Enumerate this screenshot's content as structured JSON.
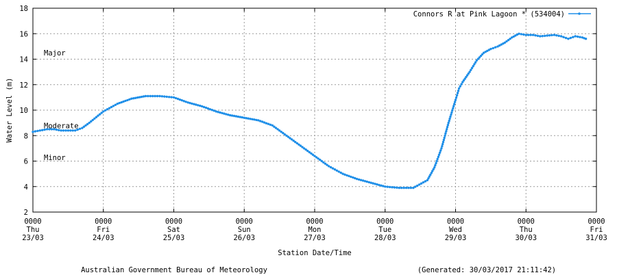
{
  "chart_data": {
    "type": "line",
    "title": "",
    "xlabel": "Station Date/Time",
    "ylabel": "Water Level (m)",
    "ylim": [
      2,
      18
    ],
    "y_ticks": [
      "2",
      "4",
      "6",
      "8",
      "10",
      "12",
      "14",
      "16",
      "18"
    ],
    "xlim": [
      0,
      8
    ],
    "x_ticks": [
      {
        "time": "0000",
        "day": "Thu",
        "date": "23/03"
      },
      {
        "time": "0000",
        "day": "Fri",
        "date": "24/03"
      },
      {
        "time": "0000",
        "day": "Sat",
        "date": "25/03"
      },
      {
        "time": "0000",
        "day": "Sun",
        "date": "26/03"
      },
      {
        "time": "0000",
        "day": "Mon",
        "date": "27/03"
      },
      {
        "time": "0000",
        "day": "Tue",
        "date": "28/03"
      },
      {
        "time": "0000",
        "day": "Wed",
        "date": "29/03"
      },
      {
        "time": "0000",
        "day": "Thu",
        "date": "30/03"
      },
      {
        "time": "0000",
        "day": "Fri",
        "date": "31/03"
      }
    ],
    "grid": true,
    "legend_position": "top-right",
    "annotations": [
      {
        "text": "Major",
        "y": 14.5
      },
      {
        "text": "Moderate",
        "y": 8.8
      },
      {
        "text": "Minor",
        "y": 6.3
      }
    ],
    "series": [
      {
        "name": "Connors R at Pink Lagoon * (534004)",
        "color": "#1f8fe8",
        "x": [
          0,
          0.1,
          0.2,
          0.3,
          0.4,
          0.5,
          0.6,
          0.7,
          0.8,
          1.0,
          1.2,
          1.4,
          1.6,
          1.8,
          2.0,
          2.2,
          2.4,
          2.6,
          2.8,
          3.0,
          3.2,
          3.4,
          3.6,
          3.8,
          4.0,
          4.2,
          4.4,
          4.6,
          4.8,
          5.0,
          5.2,
          5.4,
          5.6,
          5.7,
          5.8,
          5.9,
          6.0,
          6.05,
          6.1,
          6.15,
          6.2,
          6.3,
          6.4,
          6.5,
          6.6,
          6.7,
          6.8,
          6.9,
          7.0,
          7.1,
          7.2,
          7.4,
          7.5,
          7.6,
          7.7,
          7.8,
          7.85
        ],
        "y": [
          8.3,
          8.4,
          8.5,
          8.5,
          8.4,
          8.4,
          8.4,
          8.6,
          9.0,
          9.9,
          10.5,
          10.9,
          11.1,
          11.1,
          11.0,
          10.6,
          10.3,
          9.9,
          9.6,
          9.4,
          9.2,
          8.8,
          8.0,
          7.2,
          6.4,
          5.6,
          5.0,
          4.6,
          4.3,
          4.0,
          3.9,
          3.9,
          4.5,
          5.5,
          7.0,
          9.0,
          10.8,
          11.7,
          12.2,
          12.6,
          13.0,
          13.9,
          14.5,
          14.8,
          15.0,
          15.3,
          15.7,
          16.0,
          15.9,
          15.9,
          15.8,
          15.9,
          15.8,
          15.6,
          15.8,
          15.7,
          15.6
        ]
      }
    ]
  },
  "footer": {
    "left": "Australian Government Bureau of Meteorology",
    "right": "(Generated: 30/03/2017 21:11:42)"
  }
}
